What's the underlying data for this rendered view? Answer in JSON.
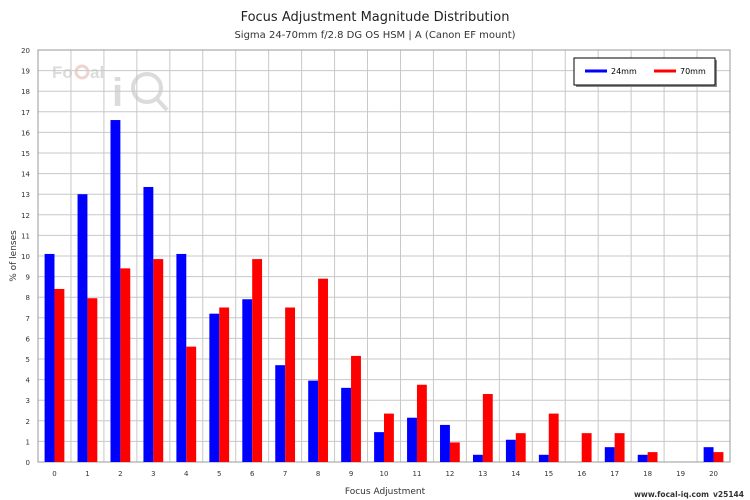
{
  "chart_data": {
    "type": "bar",
    "title": "Focus Adjustment Magnitude Distribution",
    "subtitle": "Sigma 24-70mm f/2.8 DG OS HSM | A (Canon EF mount)",
    "xlabel": "Focus Adjustment",
    "ylabel": "% of lenses",
    "ylim": [
      0,
      20
    ],
    "y_ticks": [
      0,
      1,
      2,
      3,
      4,
      5,
      6,
      7,
      8,
      9,
      10,
      11,
      12,
      13,
      14,
      15,
      16,
      17,
      18,
      19,
      20
    ],
    "categories": [
      "0",
      "1",
      "2",
      "3",
      "4",
      "5",
      "6",
      "7",
      "8",
      "9",
      "10",
      "11",
      "12",
      "13",
      "14",
      "15",
      "16",
      "17",
      "18",
      "19",
      "20"
    ],
    "series": [
      {
        "name": "24mm",
        "color": "#0000ff",
        "values": [
          10.1,
          13.0,
          16.6,
          13.35,
          10.1,
          7.2,
          7.9,
          4.7,
          3.95,
          3.6,
          1.45,
          2.15,
          1.8,
          0.35,
          1.08,
          0.35,
          0,
          0.72,
          0.35,
          0,
          0.72
        ]
      },
      {
        "name": "70mm",
        "color": "#ff0000",
        "values": [
          8.4,
          7.95,
          9.4,
          9.85,
          5.6,
          7.5,
          9.85,
          7.5,
          8.9,
          5.15,
          2.35,
          3.75,
          0.95,
          3.3,
          1.4,
          2.35,
          1.4,
          1.4,
          0.48,
          0,
          0.48
        ]
      }
    ],
    "grid": true,
    "legend_position": "top-right"
  },
  "watermark": {
    "logo_text": "Focal iQ"
  },
  "footer": {
    "site": "www.focal-iq.com",
    "version": "v25144"
  }
}
